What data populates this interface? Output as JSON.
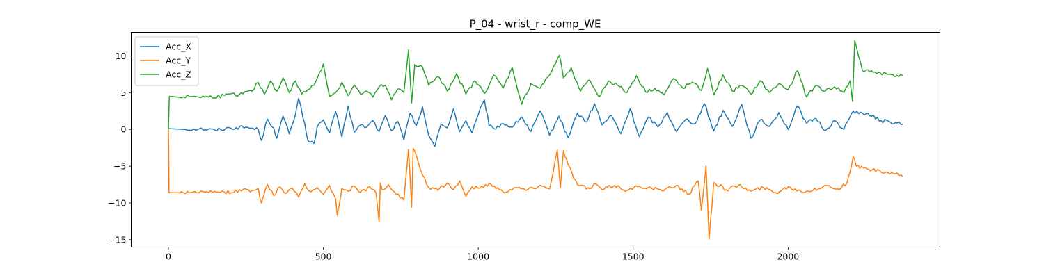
{
  "chart_data": {
    "type": "line",
    "title": "P_04 - wrist_r - comp_WE",
    "xlabel": "",
    "ylabel": "",
    "xlim": [
      -120,
      2490
    ],
    "ylim": [
      -16.0,
      13.2
    ],
    "x_ticks": [
      0,
      500,
      1000,
      1500,
      2000
    ],
    "x_tick_labels": [
      "0",
      "500",
      "1000",
      "1500",
      "2000"
    ],
    "y_ticks": [
      10,
      5,
      0,
      -5,
      -10,
      -15
    ],
    "y_tick_labels": [
      "10",
      "5",
      "0",
      "−5",
      "−10",
      "−15"
    ],
    "grid": false,
    "legend_position": "top-left",
    "series": [
      {
        "name": "Acc_X",
        "color": "#1f77b4",
        "x": [
          0,
          50,
          100,
          150,
          200,
          250,
          290,
          300,
          320,
          340,
          350,
          370,
          390,
          410,
          420,
          440,
          450,
          470,
          480,
          500,
          520,
          540,
          560,
          580,
          600,
          620,
          640,
          660,
          680,
          700,
          720,
          740,
          760,
          780,
          800,
          820,
          840,
          860,
          880,
          900,
          920,
          940,
          960,
          980,
          1000,
          1020,
          1035,
          1050,
          1080,
          1110,
          1140,
          1170,
          1200,
          1230,
          1260,
          1290,
          1320,
          1350,
          1375,
          1400,
          1430,
          1460,
          1490,
          1520,
          1550,
          1580,
          1610,
          1640,
          1670,
          1700,
          1730,
          1760,
          1790,
          1820,
          1850,
          1880,
          1910,
          1940,
          1970,
          2000,
          2030,
          2060,
          2090,
          2120,
          2150,
          2180,
          2210,
          2240,
          2270,
          2300,
          2330,
          2370
        ],
        "y": [
          0.1,
          0.0,
          0.1,
          -0.1,
          0.2,
          0.3,
          0.0,
          -1.5,
          1.4,
          0.2,
          -1.2,
          1.8,
          -0.6,
          2.0,
          4.2,
          0.8,
          -1.5,
          -1.9,
          0.3,
          1.3,
          -0.5,
          2.4,
          -1.0,
          3.2,
          -0.4,
          0.6,
          0.3,
          1.2,
          -0.3,
          1.9,
          -0.2,
          1.1,
          -1.4,
          2.2,
          0.5,
          3.1,
          -0.8,
          -2.3,
          0.7,
          0.2,
          2.8,
          -0.3,
          1.2,
          -0.5,
          2.0,
          4.0,
          0.5,
          0.1,
          0.8,
          0.3,
          1.7,
          -0.3,
          2.5,
          -0.8,
          1.8,
          -1.1,
          2.2,
          1.0,
          3.5,
          0.6,
          1.9,
          -0.6,
          2.8,
          -1.0,
          1.7,
          0.3,
          2.3,
          -0.3,
          1.4,
          0.8,
          3.5,
          -0.2,
          2.6,
          0.4,
          3.4,
          -1.2,
          1.3,
          0.4,
          2.3,
          0.0,
          3.2,
          0.8,
          1.5,
          -0.2,
          1.2,
          0.0,
          2.5,
          2.2,
          1.8,
          1.2,
          1.0,
          0.7
        ]
      },
      {
        "name": "Acc_Y",
        "color": "#ff7f0e",
        "x": [
          0,
          1,
          2,
          3,
          30,
          80,
          130,
          180,
          210,
          230,
          270,
          290,
          300,
          320,
          340,
          360,
          380,
          400,
          420,
          440,
          460,
          480,
          500,
          520,
          540,
          545,
          560,
          580,
          600,
          620,
          650,
          670,
          680,
          684,
          690,
          710,
          730,
          760,
          775,
          785,
          790,
          800,
          820,
          840,
          870,
          900,
          920,
          940,
          960,
          980,
          1000,
          1040,
          1080,
          1120,
          1160,
          1200,
          1230,
          1255,
          1265,
          1275,
          1290,
          1320,
          1360,
          1380,
          1400,
          1440,
          1480,
          1520,
          1560,
          1600,
          1640,
          1680,
          1710,
          1720,
          1735,
          1745,
          1760,
          1800,
          1840,
          1880,
          1920,
          1960,
          2000,
          2040,
          2080,
          2120,
          2160,
          2190,
          2200,
          2210,
          2220,
          2260,
          2300,
          2340,
          2370
        ],
        "y": [
          0.0,
          -2.5,
          -8.6,
          -8.6,
          -8.6,
          -8.5,
          -8.6,
          -8.5,
          -8.6,
          -8.2,
          -8.3,
          -8.0,
          -10.0,
          -7.5,
          -9.0,
          -7.8,
          -8.7,
          -8.0,
          -9.2,
          -7.4,
          -8.5,
          -7.9,
          -8.8,
          -7.6,
          -9.5,
          -11.7,
          -8.0,
          -8.4,
          -7.7,
          -8.6,
          -7.8,
          -8.6,
          -12.6,
          -7.3,
          -8.2,
          -7.5,
          -8.5,
          -9.6,
          -2.7,
          -10.6,
          -2.6,
          -3.5,
          -6.2,
          -7.9,
          -8.3,
          -7.3,
          -8.2,
          -7.0,
          -9.1,
          -7.8,
          -8.0,
          -7.4,
          -8.5,
          -7.9,
          -8.2,
          -7.6,
          -8.1,
          -2.8,
          -7.9,
          -2.9,
          -4.8,
          -7.5,
          -8.1,
          -7.4,
          -8.2,
          -7.6,
          -8.3,
          -7.7,
          -8.0,
          -8.3,
          -7.6,
          -8.8,
          -7.0,
          -11.0,
          -5.0,
          -14.9,
          -7.2,
          -8.2,
          -7.6,
          -8.4,
          -7.9,
          -8.6,
          -7.8,
          -8.4,
          -8.3,
          -7.6,
          -8.1,
          -7.3,
          -5.8,
          -3.7,
          -5.0,
          -5.4,
          -5.8,
          -6.0,
          -6.4
        ]
      },
      {
        "name": "Acc_Z",
        "color": "#2ca02c",
        "x": [
          0,
          3,
          30,
          80,
          130,
          180,
          230,
          270,
          290,
          310,
          330,
          350,
          370,
          390,
          410,
          430,
          450,
          470,
          500,
          520,
          540,
          560,
          580,
          600,
          620,
          640,
          660,
          680,
          700,
          720,
          740,
          760,
          775,
          785,
          795,
          820,
          840,
          870,
          900,
          930,
          960,
          990,
          1020,
          1050,
          1080,
          1110,
          1140,
          1170,
          1200,
          1230,
          1262,
          1275,
          1300,
          1330,
          1360,
          1390,
          1420,
          1450,
          1480,
          1510,
          1540,
          1570,
          1600,
          1630,
          1660,
          1690,
          1720,
          1740,
          1760,
          1790,
          1820,
          1850,
          1880,
          1910,
          1940,
          1970,
          2000,
          2030,
          2060,
          2090,
          2120,
          2150,
          2180,
          2200,
          2208,
          2215,
          2240,
          2280,
          2320,
          2370
        ],
        "y": [
          0.0,
          4.5,
          4.4,
          4.5,
          4.4,
          4.6,
          4.8,
          5.2,
          6.4,
          4.8,
          6.6,
          5.2,
          7.0,
          5.0,
          6.6,
          4.8,
          5.4,
          6.0,
          8.9,
          4.5,
          5.0,
          6.4,
          4.6,
          6.0,
          4.8,
          5.2,
          4.4,
          5.8,
          6.0,
          4.0,
          5.5,
          5.0,
          10.8,
          3.6,
          8.8,
          8.5,
          6.0,
          7.2,
          5.2,
          7.6,
          4.8,
          6.6,
          4.9,
          7.4,
          5.6,
          8.4,
          3.4,
          6.2,
          5.6,
          7.4,
          10.1,
          7.0,
          8.4,
          5.2,
          6.7,
          4.4,
          6.6,
          6.0,
          5.0,
          7.3,
          5.1,
          5.6,
          4.7,
          6.9,
          5.6,
          6.4,
          5.3,
          8.3,
          4.7,
          7.4,
          5.2,
          6.0,
          4.8,
          6.6,
          5.0,
          6.2,
          5.4,
          8.0,
          4.4,
          6.0,
          5.2,
          5.8,
          5.0,
          6.6,
          3.8,
          12.1,
          8.0,
          7.8,
          7.5,
          7.3
        ]
      }
    ]
  }
}
